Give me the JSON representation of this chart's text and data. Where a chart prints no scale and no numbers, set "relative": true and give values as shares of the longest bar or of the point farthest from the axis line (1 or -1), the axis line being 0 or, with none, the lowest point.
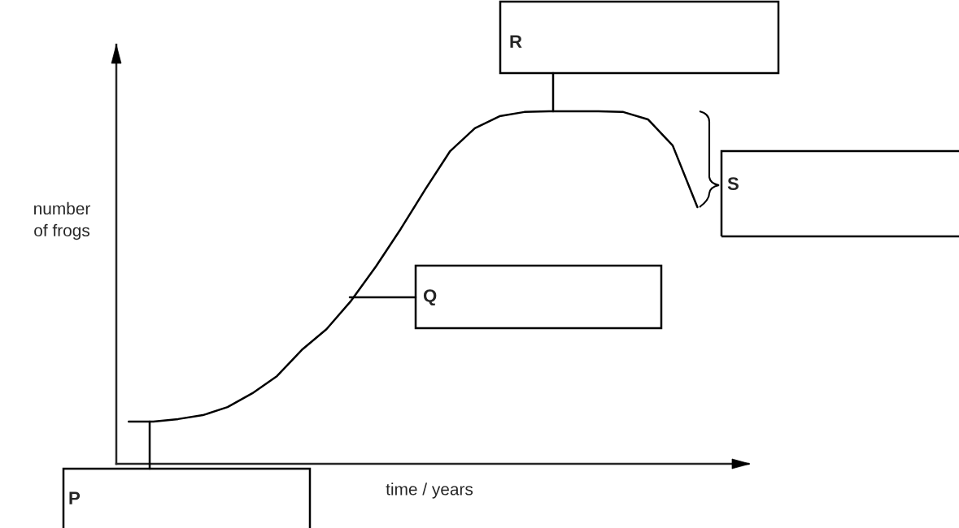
{
  "chart_data": {
    "type": "line",
    "relative": true,
    "xlabel": "time / years",
    "ylabel": "number\nof frogs",
    "color": "#000000",
    "legend": false,
    "marker": "none",
    "line_style": "solid",
    "categories": [
      null,
      null,
      null,
      null,
      null,
      null,
      null,
      null,
      null,
      null,
      null,
      null,
      null,
      null,
      null,
      null,
      null,
      null,
      null,
      null,
      null,
      null,
      null,
      null
    ],
    "values": [
      0.12,
      0.12,
      0.127,
      0.138,
      0.161,
      0.2,
      0.249,
      0.323,
      0.382,
      0.463,
      0.56,
      0.666,
      0.779,
      0.887,
      0.952,
      0.986,
      0.998,
      1,
      1,
      1,
      0.998,
      0.977,
      0.903,
      0.728
    ],
    "annotations": [
      "P",
      "Q",
      "R",
      "S"
    ]
  }
}
